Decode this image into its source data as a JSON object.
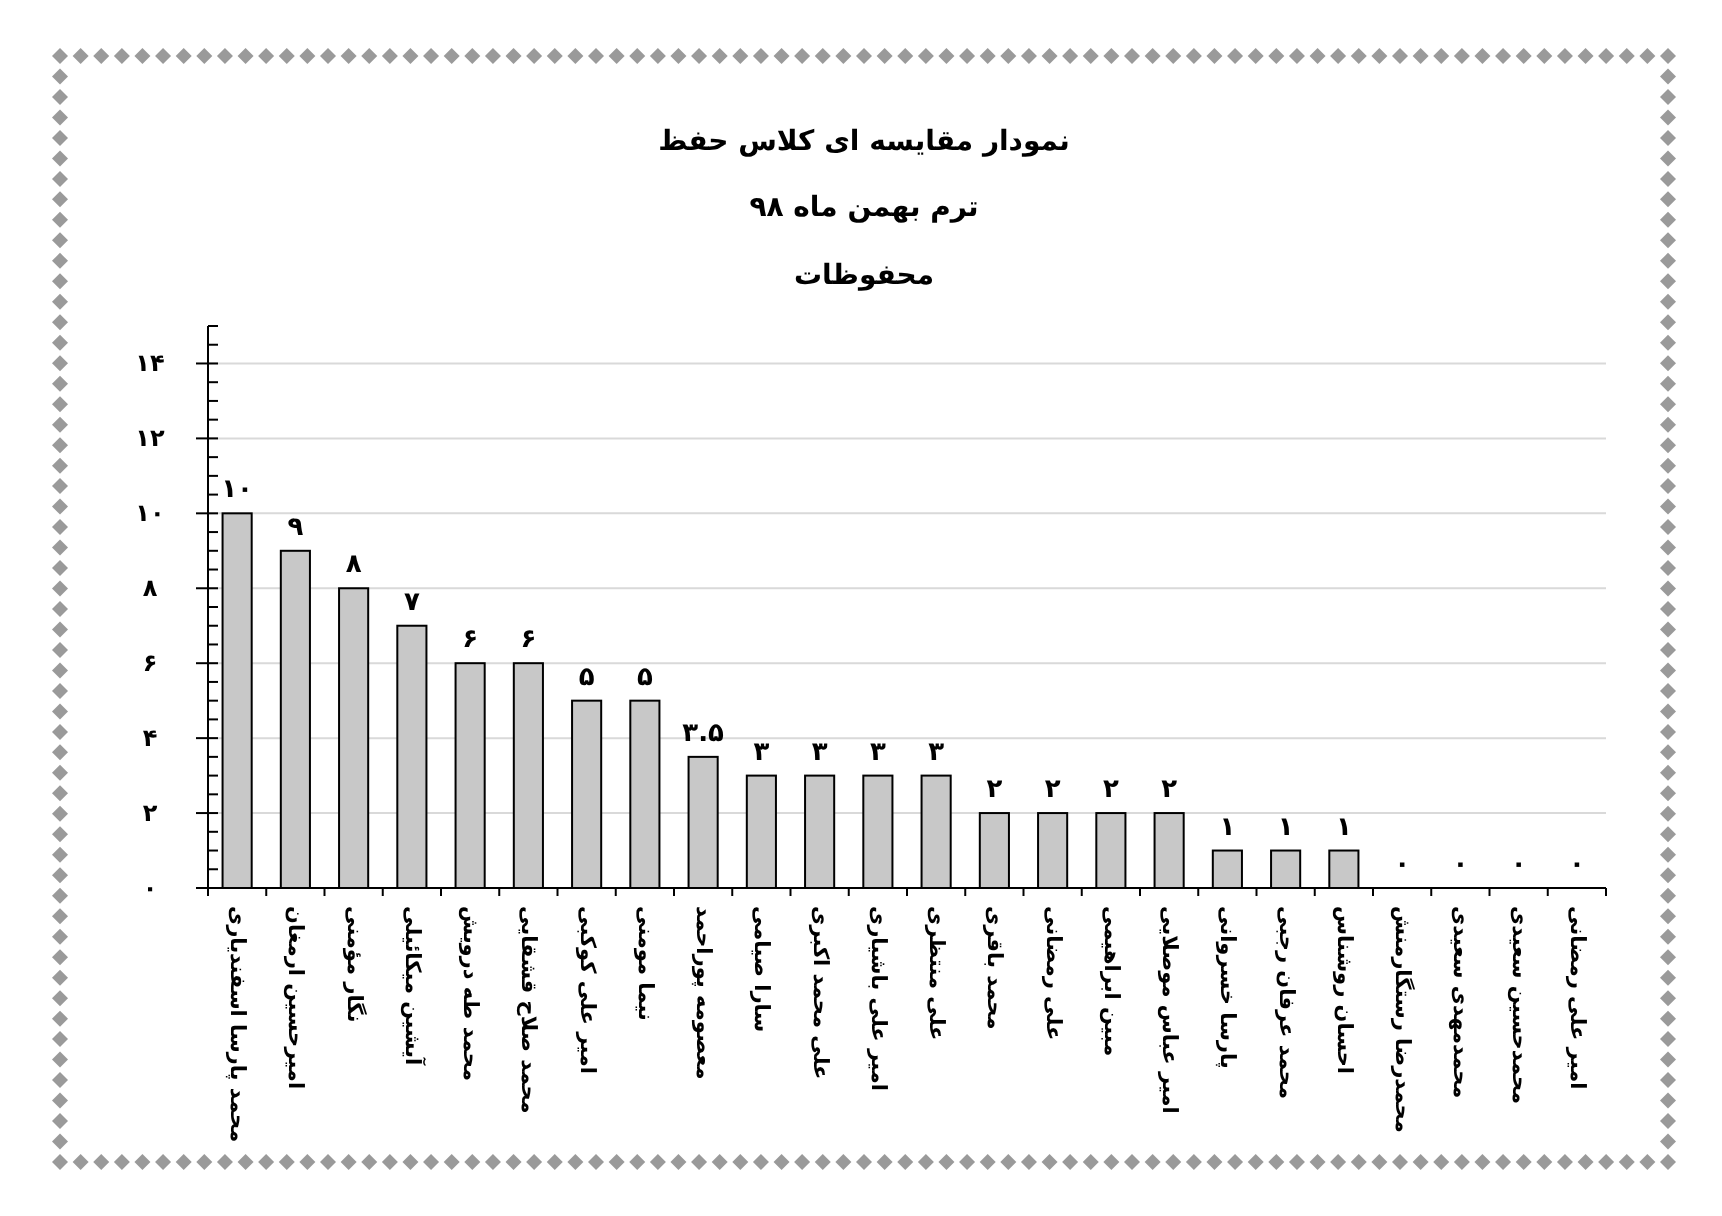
{
  "chart_data": {
    "type": "bar",
    "title": "نمودار مقایسه ای کلاس حفظ",
    "subtitle": "ترم بهمن ماه ۹۸",
    "annotations": [
      "محفوظات"
    ],
    "categories": [
      "محمد پارسا اسفندیاری",
      "امیرحسین ارمغان",
      "نگار مؤمنی",
      "آیشین میکائیلی",
      "محمد طه درویش",
      "محمد صلاح قشقایی",
      "امیر علی کوکبی",
      "نیما مومنی",
      "معصومه پوراحمد",
      "سارا صیامی",
      "علی محمد اکبری",
      "امیر علی باشیاری",
      "علی منتظری",
      "محمد باقری",
      "علی رمضانی",
      "مبین ابراهیمی",
      "امیر عباس موصلایی",
      "پارسا خسروانی",
      "محمد عرفان رجبی",
      "احسان روشناس",
      "محمدرضا رستگارمنش",
      "محمدمهدی سعیدی",
      "محمدحسین سعیدی",
      "امیر علی رمضانی"
    ],
    "values": [
      10,
      9,
      8,
      7,
      6,
      6,
      5,
      5,
      3.5,
      3,
      3,
      3,
      3,
      2,
      2,
      2,
      2,
      1,
      1,
      1,
      0,
      0,
      0,
      0
    ],
    "value_labels": [
      "۱۰",
      "۹",
      "۸",
      "۷",
      "۶",
      "۶",
      "۵",
      "۵",
      "۳.۵",
      "۳",
      "۳",
      "۳",
      "۳",
      "۲",
      "۲",
      "۲",
      "۲",
      "۱",
      "۱",
      "۱",
      "۰",
      "۰",
      "۰",
      "۰"
    ],
    "color": "#c8c8c8",
    "ylim": [
      0,
      15
    ],
    "yticks": [
      {
        "value": 0,
        "label": "۰"
      },
      {
        "value": 0.5,
        "label": null
      },
      {
        "value": 1,
        "label": null
      },
      {
        "value": 1.5,
        "label": null
      },
      {
        "value": 2,
        "label": "۲"
      },
      {
        "value": 2.5,
        "label": null
      },
      {
        "value": 3,
        "label": null
      },
      {
        "value": 3.5,
        "label": null
      },
      {
        "value": 4,
        "label": "۴"
      },
      {
        "value": 4.5,
        "label": null
      },
      {
        "value": 5,
        "label": null
      },
      {
        "value": 5.5,
        "label": null
      },
      {
        "value": 6,
        "label": "۶"
      },
      {
        "value": 6.5,
        "label": null
      },
      {
        "value": 7,
        "label": null
      },
      {
        "value": 7.5,
        "label": null
      },
      {
        "value": 8,
        "label": "۸"
      },
      {
        "value": 8.5,
        "label": null
      },
      {
        "value": 9,
        "label": null
      },
      {
        "value": 9.5,
        "label": null
      },
      {
        "value": 10,
        "label": "۱۰"
      },
      {
        "value": 10.5,
        "label": null
      },
      {
        "value": 11,
        "label": null
      },
      {
        "value": 11.5,
        "label": null
      },
      {
        "value": 12,
        "label": "۱۲"
      },
      {
        "value": 12.5,
        "label": null
      },
      {
        "value": 13,
        "label": null
      },
      {
        "value": 13.5,
        "label": null
      },
      {
        "value": 14,
        "label": "۱۴"
      },
      {
        "value": 14.5,
        "label": null
      },
      {
        "value": 15,
        "label": null
      }
    ],
    "grid": "y"
  }
}
